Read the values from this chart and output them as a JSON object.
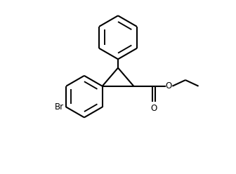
{
  "line_color": "#000000",
  "bg_color": "#ffffff",
  "line_width": 1.5,
  "figsize": [
    3.36,
    2.48
  ],
  "dpi": 100,
  "xlim": [
    0,
    10
  ],
  "ylim": [
    0,
    10
  ]
}
